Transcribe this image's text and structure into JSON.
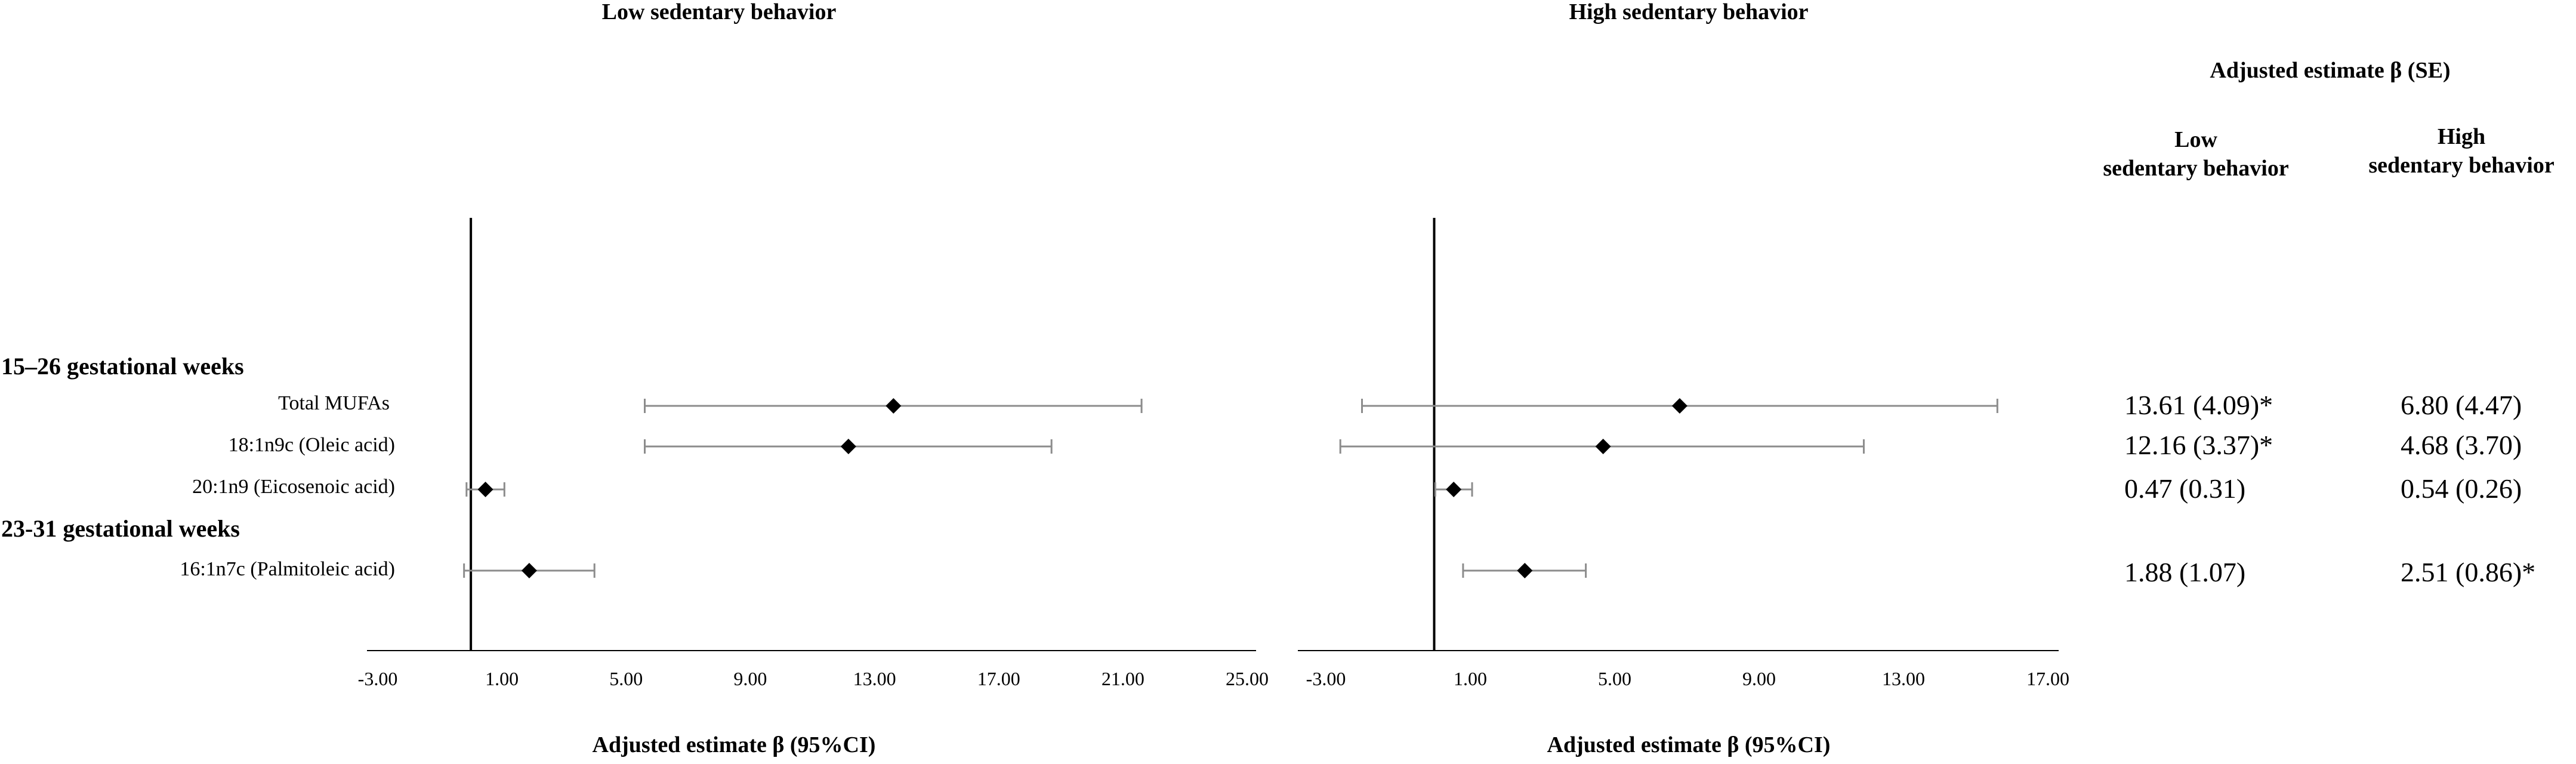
{
  "panels": {
    "low": {
      "title": "Low sedentary behavior",
      "xlabel": "Adjusted estimate β (95%CI)"
    },
    "high": {
      "title": "High sedentary behavior",
      "xlabel": "Adjusted estimate β (95%CI)"
    }
  },
  "table": {
    "header": "Adjusted estimate β (SE)",
    "col_low_line1": "Low",
    "col_low_line2": "sedentary behavior",
    "col_high_line1": "High",
    "col_high_line2": "sedentary behavior"
  },
  "groups": [
    "15–26 gestational weeks",
    "23-31 gestational weeks"
  ],
  "rows": [
    {
      "label": "Total MUFAs",
      "low_text": "13.61 (4.09)*",
      "high_text": "6.80 (4.47)"
    },
    {
      "label": "18:1n9c (Oleic acid)",
      "low_text": "12.16 (3.37)*",
      "high_text": "4.68 (3.70)"
    },
    {
      "label": "20:1n9 (Eicosenoic acid)",
      "low_text": "0.47 (0.31)",
      "high_text": "0.54 (0.26)"
    },
    {
      "label": "16:1n7c (Palmitoleic acid)",
      "low_text": "1.88 (1.07)",
      "high_text": "2.51 (0.86)*"
    }
  ],
  "chart_data": [
    {
      "type": "forest",
      "title": "Low sedentary behavior",
      "xlabel": "Adjusted estimate β (95%CI)",
      "xlim": [
        -3,
        25
      ],
      "ticks": [
        -3,
        1,
        5,
        9,
        13,
        17,
        21,
        25
      ],
      "tick_labels": [
        "-3.00",
        "1.00",
        "5.00",
        "9.00",
        "13.00",
        "17.00",
        "21.00",
        "25.00"
      ],
      "reference_line": 0,
      "categories": [
        "Total MUFAs",
        "18:1n9c (Oleic acid)",
        "20:1n9 (Eicosenoic acid)",
        "16:1n7c (Palmitoleic acid)"
      ],
      "estimates": [
        13.61,
        12.16,
        0.47,
        1.88
      ],
      "ci_lower": [
        5.6,
        5.6,
        -0.14,
        -0.22
      ],
      "ci_upper": [
        21.6,
        18.7,
        1.08,
        3.98
      ]
    },
    {
      "type": "forest",
      "title": "High sedentary behavior",
      "xlabel": "Adjusted estimate β (95%CI)",
      "xlim": [
        -3,
        17
      ],
      "ticks": [
        -3,
        1,
        5,
        9,
        13,
        17
      ],
      "tick_labels": [
        "-3.00",
        "1.00",
        "5.00",
        "9.00",
        "13.00",
        "17.00"
      ],
      "reference_line": 0,
      "categories": [
        "Total MUFAs",
        "18:1n9c (Oleic acid)",
        "20:1n9 (Eicosenoic acid)",
        "16:1n7c (Palmitoleic acid)"
      ],
      "estimates": [
        6.8,
        4.68,
        0.54,
        2.51
      ],
      "ci_lower": [
        -2.0,
        -2.6,
        0.03,
        0.8
      ],
      "ci_upper": [
        15.6,
        11.9,
        1.05,
        4.2
      ]
    }
  ]
}
